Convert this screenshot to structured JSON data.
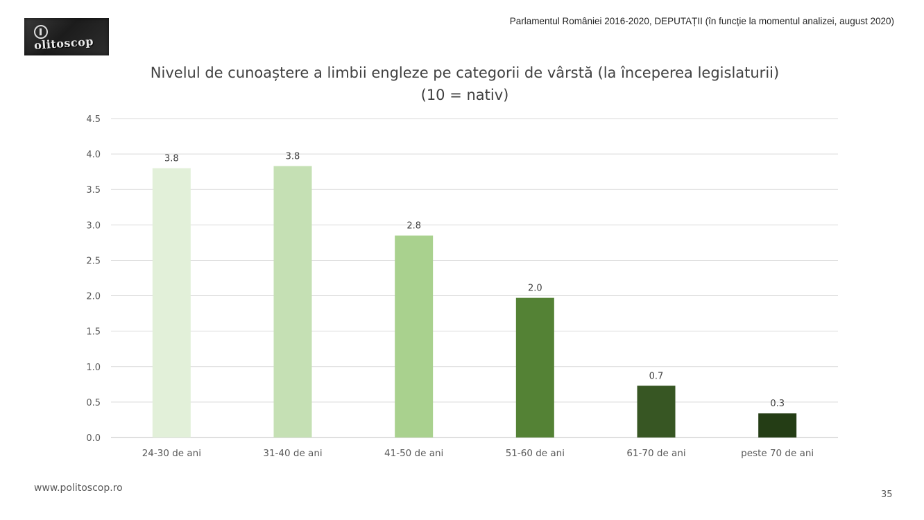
{
  "header": {
    "logo_text": "olitoscop",
    "note": "Parlamentul României 2016-2020, DEPUTAȚII (în funcție la momentul analizei, august 2020)"
  },
  "footer": {
    "url": "www.politoscop.ro",
    "page_number": "35"
  },
  "chart_data": {
    "type": "bar",
    "title": "Nivelul de cunoaștere a limbii engleze pe categorii de vârstă (la începerea legislaturii)",
    "subtitle": "(10 = nativ)",
    "xlabel": "",
    "ylabel": "",
    "categories": [
      "24-30 de ani",
      "31-40 de ani",
      "41-50 de ani",
      "51-60 de ani",
      "61-70 de ani",
      "peste 70 de ani"
    ],
    "values": [
      3.8,
      3.83,
      2.85,
      1.97,
      0.73,
      0.34
    ],
    "data_labels": [
      "3.8",
      "3.8",
      "2.8",
      "2.0",
      "0.7",
      "0.3"
    ],
    "colors": [
      "#e2f0d9",
      "#c5e0b4",
      "#a9d18e",
      "#548235",
      "#375623",
      "#243d15"
    ],
    "ylim": [
      0,
      4.5
    ],
    "y_ticks": [
      "0.0",
      "0.5",
      "1.0",
      "1.5",
      "2.0",
      "2.5",
      "3.0",
      "3.5",
      "4.0",
      "4.5"
    ],
    "grid": true,
    "legend": "none"
  }
}
